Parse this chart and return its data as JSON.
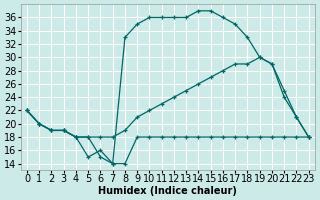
{
  "xlabel": "Humidex (Indice chaleur)",
  "bg_color": "#cceae7",
  "grid_color": "#ffffff",
  "line_color": "#006666",
  "xlim": [
    -0.5,
    23.5
  ],
  "ylim": [
    13,
    38
  ],
  "yticks": [
    14,
    16,
    18,
    20,
    22,
    24,
    26,
    28,
    30,
    32,
    34,
    36
  ],
  "xticks": [
    0,
    1,
    2,
    3,
    4,
    5,
    6,
    7,
    8,
    9,
    10,
    11,
    12,
    13,
    14,
    15,
    16,
    17,
    18,
    19,
    20,
    21,
    22,
    23
  ],
  "line_top_x": [
    0,
    1,
    2,
    3,
    4,
    5,
    6,
    7,
    8,
    9,
    10,
    11,
    12,
    13,
    14,
    15,
    16,
    17,
    18,
    19,
    20,
    21,
    22,
    23
  ],
  "line_top_y": [
    22,
    20,
    19,
    19,
    18,
    18,
    15,
    14,
    33,
    35,
    36,
    36,
    36,
    36,
    37,
    37,
    36,
    35,
    33,
    30,
    29,
    24,
    21,
    18
  ],
  "line_mid_x": [
    0,
    1,
    2,
    3,
    4,
    5,
    6,
    7,
    8,
    9,
    10,
    11,
    12,
    13,
    14,
    15,
    16,
    17,
    18,
    19,
    20,
    21,
    22,
    23
  ],
  "line_mid_y": [
    22,
    20,
    19,
    19,
    18,
    18,
    18,
    18,
    19,
    21,
    22,
    23,
    24,
    25,
    26,
    27,
    28,
    29,
    29,
    30,
    29,
    25,
    21,
    18
  ],
  "line_bot_x": [
    0,
    1,
    2,
    3,
    4,
    5,
    6,
    7,
    8,
    9,
    10,
    11,
    12,
    13,
    14,
    15,
    16,
    17,
    18,
    19,
    20,
    21,
    22,
    23
  ],
  "line_bot_y": [
    22,
    20,
    19,
    19,
    18,
    15,
    16,
    14,
    14,
    18,
    18,
    18,
    18,
    18,
    18,
    18,
    18,
    18,
    18,
    18,
    18,
    18,
    18,
    18
  ],
  "font_size": 7,
  "marker": "+"
}
